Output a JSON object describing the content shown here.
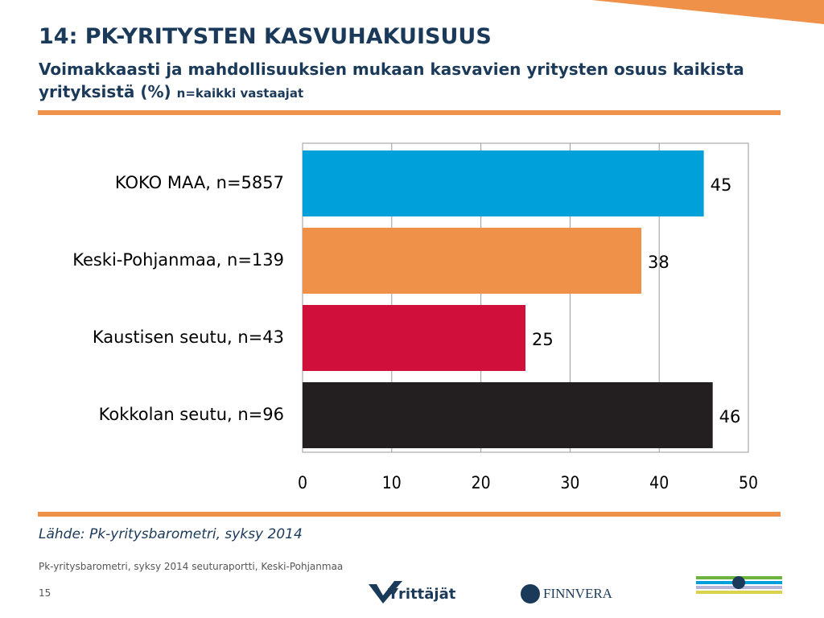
{
  "title": "14: PK-YRITYSTEN KASVUHAKUISUUS",
  "subtitle": "Voimakkaasti ja mahdollisuuksien mukaan kasvavien yritysten osuus kaikista yrityksistä (%)",
  "subtitle_note": "n=kaikki vastaajat",
  "chart_data": {
    "type": "hbar",
    "categories": [
      "KOKO MAA, n=5857",
      "Keski-Pohjanmaa, n=139",
      "Kaustisen seutu, n=43",
      "Kokkolan seutu, n=96"
    ],
    "values": [
      45,
      38,
      25,
      46
    ],
    "colors": [
      "#00a0db",
      "#f0914a",
      "#d0103a",
      "#231f20"
    ],
    "xlim": [
      0,
      50
    ],
    "xticks": [
      0,
      10,
      20,
      30,
      40,
      50
    ],
    "grid": true
  },
  "source": "Lähde: Pk-yritysbarometri, syksy 2014",
  "footer": "Pk-yritysbarometri, syksy 2014 seuturaportti, Keski-Pohjanmaa",
  "page_number": "15",
  "logos": [
    "Yrittäjät",
    "FINNVERA"
  ]
}
